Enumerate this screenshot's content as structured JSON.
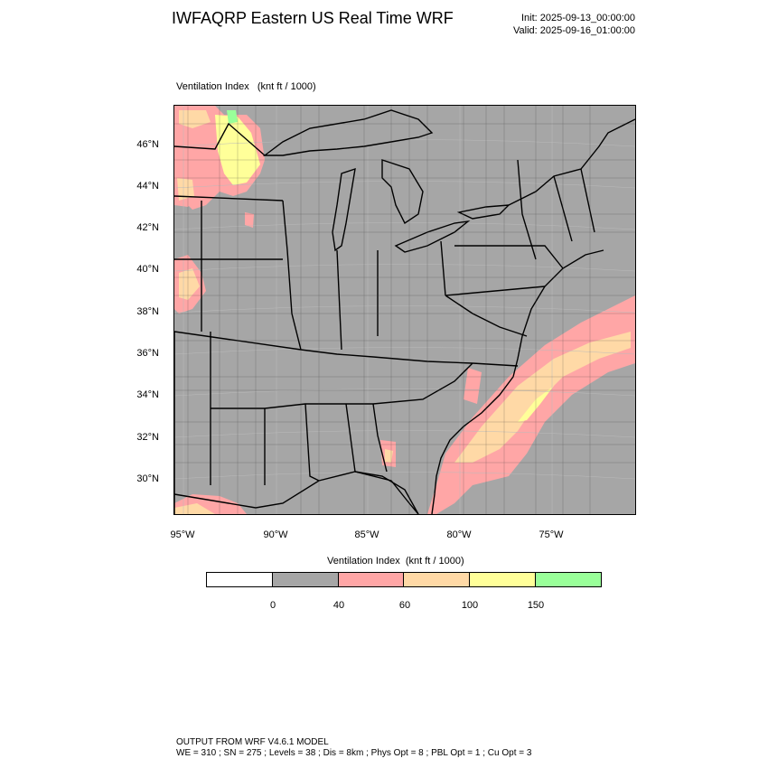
{
  "header": {
    "title": "IWFAQRP Eastern US Real Time WRF",
    "init": "Init: 2025-09-13_00:00:00",
    "valid": "Valid: 2025-09-16_01:00:00"
  },
  "map": {
    "field_label": "Ventilation Index   (knt ft / 1000)",
    "lat_ticks": [
      "46°N",
      "44°N",
      "42°N",
      "40°N",
      "38°N",
      "36°N",
      "34°N",
      "32°N",
      "30°N"
    ],
    "lon_ticks": [
      "95°W",
      "90°W",
      "85°W",
      "80°W",
      "75°W"
    ],
    "colors": {
      "land": "#a6a6a6",
      "sea": "#a6a6a6",
      "lt60": "#ffa6a6",
      "lt100": "#ffd9a6",
      "lt150": "#ffff99",
      "gt150": "#99ff99",
      "boundary": "#000000"
    }
  },
  "legend": {
    "title": "Ventilation Index  (knt ft / 1000)",
    "colors": [
      "#ffffff",
      "#a6a6a6",
      "#ffa6a6",
      "#ffd9a6",
      "#ffff99",
      "#99ff99"
    ],
    "labels": [
      "0",
      "40",
      "60",
      "100",
      "150"
    ]
  },
  "footer": {
    "line1": "OUTPUT FROM WRF V4.6.1 MODEL",
    "line2": "WE = 310 ; SN = 275 ; Levels = 38 ; Dis = 8km ; Phys Opt = 8 ; PBL Opt = 1 ; Cu Opt = 3"
  }
}
